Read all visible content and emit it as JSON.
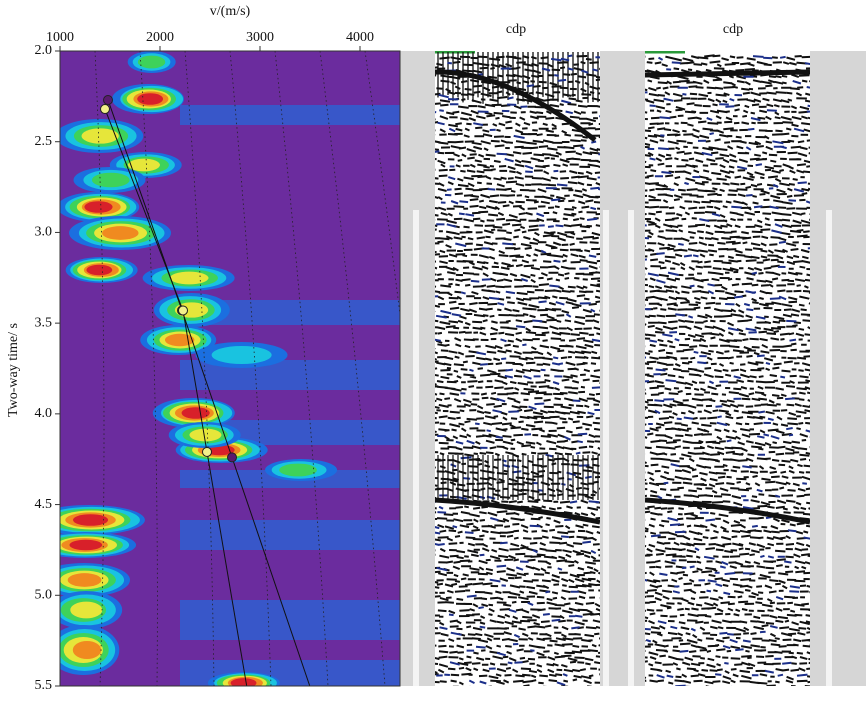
{
  "chart_data": {
    "type": "scatter",
    "x_label": "v/(m/s)",
    "y_label": "Two-way time/ s",
    "xlim": [
      1000,
      4400
    ],
    "xticks": [
      1000,
      2000,
      3000,
      4000
    ],
    "ylim": [
      2,
      5.5
    ],
    "y_inverted": true,
    "yticks": [
      {
        "value": 2,
        "label": "2.0"
      },
      2.5,
      {
        "value": 3,
        "label": "3.0"
      },
      3.5,
      {
        "value": 4,
        "label": "4.0"
      },
      4.5,
      {
        "value": 5,
        "label": "5.0"
      },
      5.5
    ],
    "connect": true,
    "series": [
      {
        "color": "#5a1a6e",
        "x": [
          1480,
          2220,
          2720
        ],
        "values": [
          2.27,
          3.43,
          4.24
        ]
      },
      {
        "color": "#f2f08a",
        "x": [
          1450,
          2230,
          2470
        ],
        "values": [
          2.32,
          3.43,
          4.21
        ]
      }
    ]
  },
  "gathers": [
    {
      "title": "cdp"
    },
    {
      "title": "cdp"
    }
  ]
}
